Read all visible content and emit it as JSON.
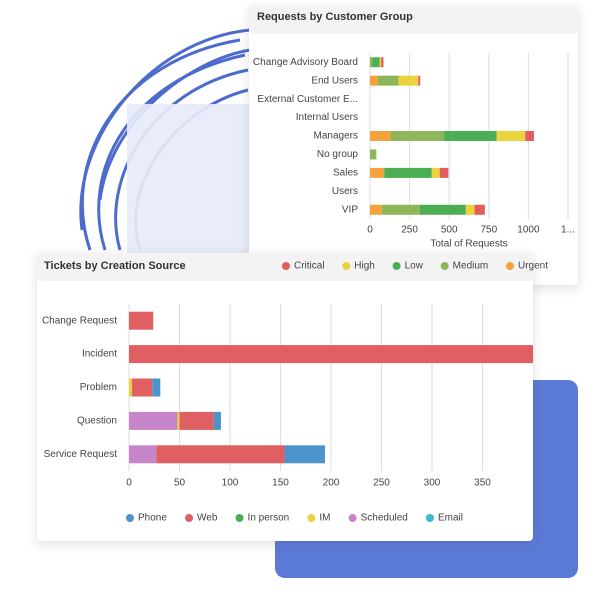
{
  "chart_data": [
    {
      "type": "bar",
      "orientation": "horizontal",
      "stacked": true,
      "grid": true,
      "title": "Requests by Customer Group",
      "x_label": "Total of Requests",
      "categories": [
        "Change Advisory Board",
        "End Users",
        "External Customer E...",
        "Internal Users",
        "Managers",
        "No group",
        "Sales",
        "Users",
        "VIP"
      ],
      "series": [
        {
          "name": "Critical",
          "color": "#e35d5d",
          "values": [
            15,
            12,
            0,
            0,
            55,
            0,
            55,
            0,
            65
          ]
        },
        {
          "name": "High",
          "color": "#ead33c",
          "values": [
            10,
            125,
            0,
            0,
            180,
            0,
            50,
            0,
            55
          ]
        },
        {
          "name": "Low",
          "color": "#4cae52",
          "values": [
            45,
            0,
            0,
            0,
            330,
            0,
            300,
            0,
            290
          ]
        },
        {
          "name": "Medium",
          "color": "#8db65a",
          "values": [
            15,
            130,
            0,
            0,
            340,
            40,
            0,
            0,
            240
          ]
        },
        {
          "name": "Urgent",
          "color": "#f6a23a",
          "values": [
            0,
            50,
            0,
            0,
            130,
            0,
            90,
            0,
            75
          ]
        }
      ],
      "xlim": [
        0,
        1250
      ],
      "xticks": [
        0,
        250,
        500,
        750,
        1000,
        {
          "value": 1250,
          "label": "1..."
        }
      ]
    },
    {
      "type": "bar",
      "orientation": "horizontal",
      "stacked": true,
      "grid": true,
      "title": "Tickets by Creation Source",
      "categories": [
        "Change Request",
        "Incident",
        "Problem",
        "Question",
        "Service Request"
      ],
      "series": [
        {
          "name": "Phone",
          "color": "#4b93cb",
          "values": [
            0,
            0,
            8,
            7,
            40
          ]
        },
        {
          "name": "Web",
          "color": "#e05f62",
          "values": [
            24,
            400,
            20,
            34,
            127
          ]
        },
        {
          "name": "In person",
          "color": "#4cae52",
          "values": [
            0,
            0,
            0,
            0,
            0
          ]
        },
        {
          "name": "IM",
          "color": "#ead33c",
          "values": [
            0,
            0,
            3,
            2,
            0
          ]
        },
        {
          "name": "Scheduled",
          "color": "#c685c8",
          "values": [
            0,
            0,
            0,
            48,
            27
          ]
        },
        {
          "name": "Email",
          "color": "#3cbcc9",
          "values": [
            0,
            0,
            0,
            0,
            0
          ]
        }
      ],
      "xlim": [
        0,
        400
      ],
      "xticks": [
        0,
        50,
        100,
        150,
        200,
        250,
        300,
        350
      ]
    }
  ]
}
